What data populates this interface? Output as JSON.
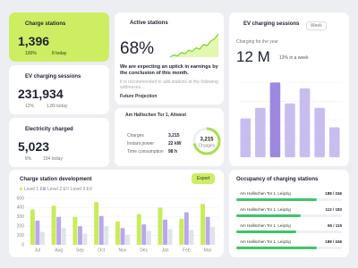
{
  "stats": [
    {
      "title": "Charge stations",
      "value": "1,396",
      "change": "100%",
      "today": "8 today"
    },
    {
      "title": "EV charging sessions",
      "value": "231,934",
      "change": "12%",
      "today": "1,89 today"
    },
    {
      "title": "Electricity charged",
      "value": "5,023",
      "change": "8%",
      "today": "154 today"
    }
  ],
  "active": {
    "title": "Active stations",
    "value": "68%",
    "text": "We are expecting an uptick in earnings by the conclusion of this month.",
    "note": "It is recommended to add stations at the following addresses...",
    "link": "Future Projection",
    "trend": [
      10,
      12,
      11,
      14,
      13,
      16,
      15,
      18,
      17,
      21,
      20,
      24,
      26,
      30
    ]
  },
  "station": {
    "address": "Am Hallischen Tor 1, Altwest",
    "rows": [
      {
        "label": "Charges",
        "value": "3,215"
      },
      {
        "label": "Instant power",
        "value": "22 kW"
      },
      {
        "label": "Time consumption",
        "value": "98 h"
      }
    ],
    "gauge": {
      "value": "3,215",
      "label": "Charges",
      "percent": 72
    }
  },
  "sessions": {
    "title": "EV charging sessions",
    "period": "Week",
    "subtitle": "Charging for the year",
    "value": "12 M",
    "change": "12% in a week",
    "bars": [
      52,
      66,
      100,
      72,
      92,
      66,
      40
    ],
    "highlight": 2,
    "ylim": [
      0,
      110
    ],
    "yticks": [
      0,
      25,
      50,
      75,
      100
    ],
    "color": "#c9bdf0",
    "highlight_color": "#9d88e0"
  },
  "development": {
    "title": "Charge station development",
    "button": "Export",
    "categories": [
      "Jul",
      "Aug",
      "Sep",
      "Oct",
      "Nov",
      "Dec",
      "Jan",
      "Feb",
      "Mar"
    ],
    "ylim": [
      0,
      500
    ],
    "yticks": [
      0,
      100,
      200,
      300,
      400,
      500
    ],
    "series": [
      {
        "name": "Level 1 EV",
        "color": "#c8ec5a",
        "values": [
          380,
          420,
          300,
          460,
          250,
          330,
          400,
          280,
          440
        ]
      },
      {
        "name": "Level 2 EV",
        "color": "#b9a7ee",
        "values": [
          260,
          300,
          200,
          310,
          180,
          220,
          270,
          350,
          300
        ]
      },
      {
        "name": "Level 3 EV",
        "color": "#dfe3ea",
        "values": [
          140,
          180,
          120,
          200,
          110,
          150,
          170,
          160,
          190
        ]
      }
    ]
  },
  "occupancy": {
    "title": "Occupancy of charging stations",
    "rows": [
      {
        "address": "Am Hallischen Tor 1, Leipzig",
        "label": "188 / 246",
        "used": 188,
        "total": 246
      },
      {
        "address": "Am Hallischen Tor 1, Leipzig",
        "label": "112 / 183",
        "used": 112,
        "total": 183
      },
      {
        "address": "Am Hallischen Tor 1, Leipzig",
        "label": "65 / 115",
        "used": 65,
        "total": 115
      },
      {
        "address": "Am Hallischen Tor 1, Leipzig",
        "label": "188 / 246",
        "used": 188,
        "total": 246
      }
    ]
  }
}
